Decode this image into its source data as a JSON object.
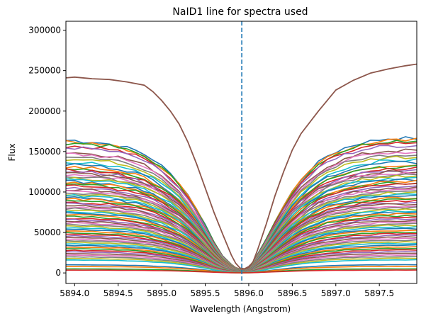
{
  "chart_data": {
    "type": "line",
    "title": "NaID1 line for spectra used",
    "xlabel": "Wavelength (Angstrom)",
    "ylabel": "Flux",
    "xlim": [
      5893.9,
      5897.93
    ],
    "ylim": [
      -13000,
      311000
    ],
    "xticks": [
      5894.0,
      5894.5,
      5895.0,
      5895.5,
      5896.0,
      5896.5,
      5897.0,
      5897.5
    ],
    "xtick_labels": [
      "5894.0",
      "5894.5",
      "5895.0",
      "5895.5",
      "5896.0",
      "5896.5",
      "5897.0",
      "5897.5"
    ],
    "yticks": [
      0,
      50000,
      100000,
      150000,
      200000,
      250000,
      300000
    ],
    "ytick_labels": [
      "0",
      "50000",
      "100000",
      "150000",
      "200000",
      "250000",
      "300000"
    ],
    "vline": {
      "x": 5895.92,
      "style": "dashed",
      "color": "#1f77b4"
    },
    "line_center": 5895.92,
    "grid": false,
    "legend": "none",
    "colors": [
      "#1f77b4",
      "#ff7f0e",
      "#2ca02c",
      "#d62728",
      "#9467bd",
      "#8c564b",
      "#e377c2",
      "#7f7f7f",
      "#bcbd22",
      "#17becf"
    ],
    "series_x": [
      5893.9,
      5894.0,
      5894.1,
      5894.2,
      5894.3,
      5894.4,
      5894.5,
      5894.6,
      5894.7,
      5894.8,
      5894.9,
      5895.0,
      5895.1,
      5895.2,
      5895.3,
      5895.4,
      5895.5,
      5895.6,
      5895.7,
      5895.8,
      5895.85,
      5895.9,
      5895.92,
      5895.95,
      5896.0,
      5896.05,
      5896.1,
      5896.2,
      5896.3,
      5896.4,
      5896.5,
      5896.6,
      5896.7,
      5896.8,
      5896.9,
      5897.0,
      5897.1,
      5897.2,
      5897.3,
      5897.4,
      5897.5,
      5897.6,
      5897.7,
      5897.8,
      5897.93
    ],
    "series_depth_profile": [
      1.0,
      1.0,
      0.99,
      0.99,
      0.98,
      0.97,
      0.96,
      0.94,
      0.92,
      0.89,
      0.85,
      0.8,
      0.74,
      0.67,
      0.58,
      0.47,
      0.35,
      0.22,
      0.11,
      0.045,
      0.02,
      0.01,
      0.008,
      0.01,
      0.03,
      0.06,
      0.12,
      0.24,
      0.37,
      0.49,
      0.6,
      0.69,
      0.76,
      0.82,
      0.87,
      0.9,
      0.93,
      0.95,
      0.97,
      0.98,
      0.99,
      1.0,
      1.0,
      1.0,
      1.0
    ],
    "brightest_series": {
      "color": "#8c564b",
      "x": [
        5893.9,
        5894.0,
        5894.2,
        5894.4,
        5894.6,
        5894.8,
        5894.9,
        5895.0,
        5895.1,
        5895.2,
        5895.3,
        5895.4,
        5895.5,
        5895.6,
        5895.7,
        5895.8,
        5895.85,
        5895.9,
        5895.95,
        5896.0,
        5896.05,
        5896.1,
        5896.2,
        5896.3,
        5896.4,
        5896.5,
        5896.6,
        5896.8,
        5897.0,
        5897.2,
        5897.4,
        5897.6,
        5897.8,
        5897.93
      ],
      "values": [
        241000,
        242000,
        240000,
        239000,
        236000,
        232000,
        224000,
        213000,
        200000,
        184000,
        162000,
        135000,
        105000,
        75000,
        48000,
        22000,
        12000,
        6000,
        5000,
        7000,
        14000,
        28000,
        60000,
        95000,
        125000,
        152000,
        172000,
        200000,
        226000,
        238000,
        247000,
        252000,
        256000,
        258000
      ]
    },
    "continuum_levels": [
      165000,
      163000,
      162000,
      158000,
      156000,
      150000,
      148000,
      145000,
      142000,
      138000,
      135000,
      132000,
      130000,
      128000,
      126000,
      124000,
      122000,
      120000,
      118000,
      116000,
      114000,
      112000,
      110000,
      108000,
      106000,
      104000,
      102000,
      100000,
      98000,
      96000,
      94000,
      92000,
      90000,
      88000,
      86000,
      84000,
      82000,
      80000,
      78000,
      76000,
      74000,
      72000,
      70000,
      68000,
      66000,
      64000,
      62000,
      60000,
      58000,
      56000,
      54000,
      52000,
      50000,
      48000,
      46000,
      44000,
      42000,
      40000,
      38000,
      36000,
      34000,
      32000,
      30000,
      28000,
      26000,
      24000,
      22000,
      20000,
      18000,
      16000,
      10000,
      8000,
      5000,
      3500
    ]
  }
}
